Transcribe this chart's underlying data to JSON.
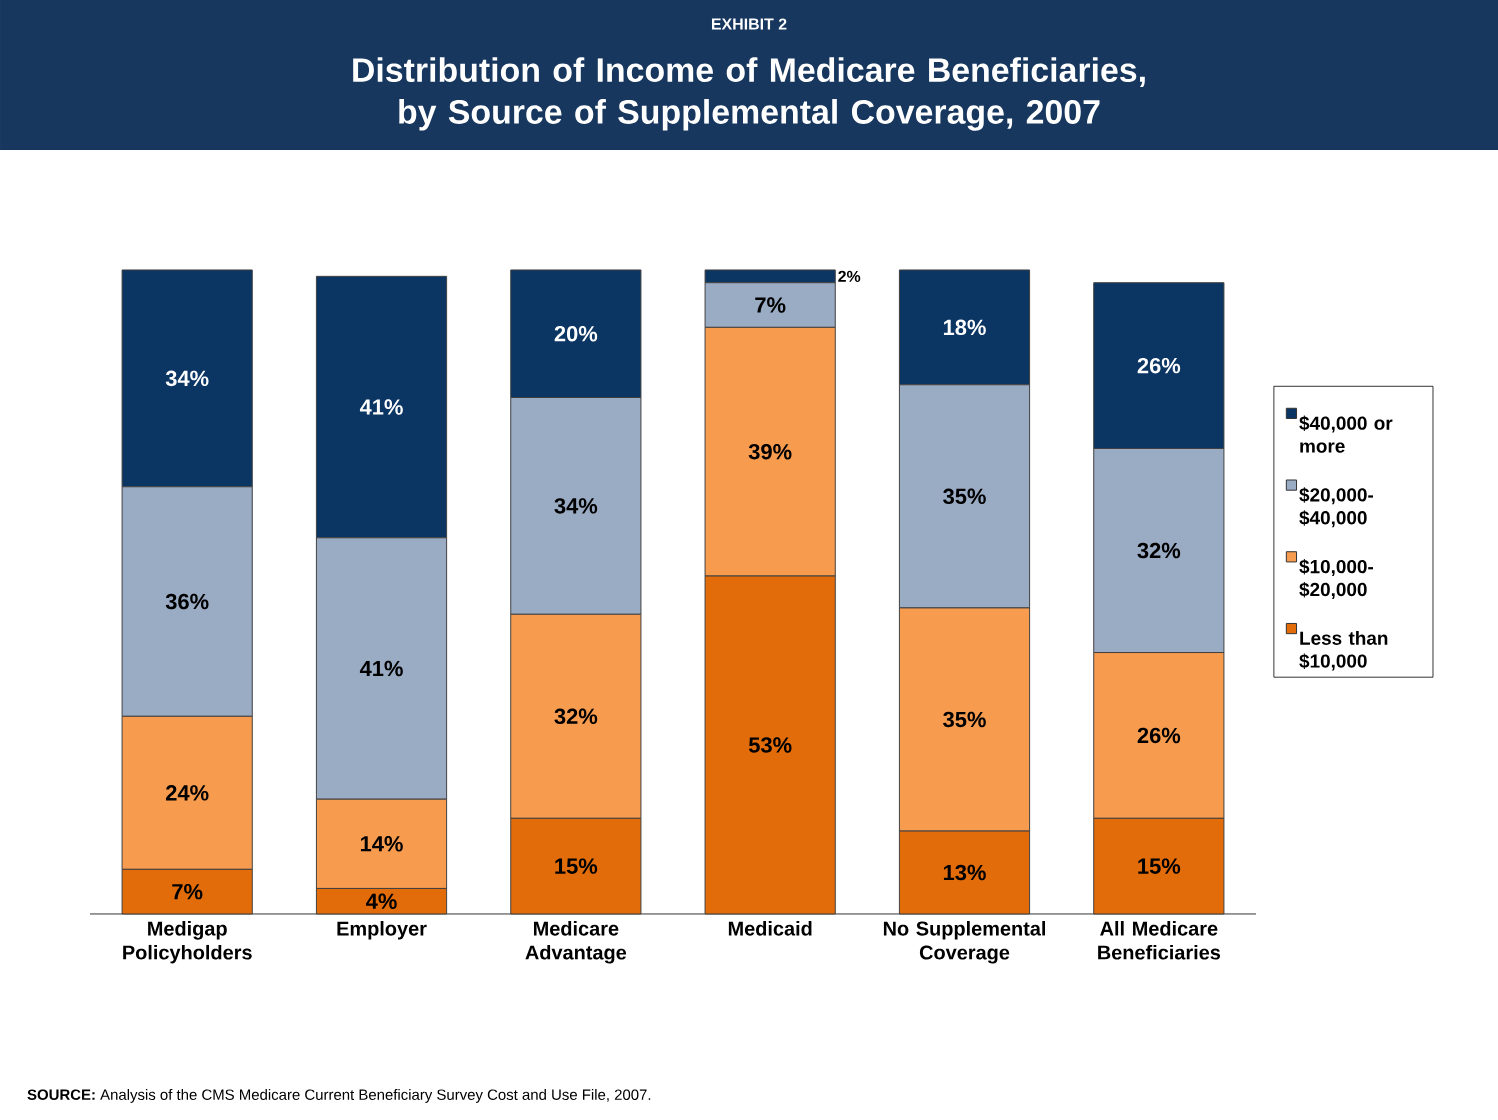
{
  "chart_data": {
    "type": "bar",
    "subtitle": "EXHIBIT 2",
    "title": "Distribution of Income of Medicare Beneficiaries, by Source of Supplemental Coverage, 2007",
    "categories": [
      "Medigap Policyholders",
      "Employer",
      "Medicare Advantage",
      "Medicaid",
      "No Supplemental Coverage",
      "All Medicare Beneficiaries"
    ],
    "stacked": true,
    "legend": "right",
    "series": [
      {
        "name": "Less than $10,000",
        "color": "#e36c0a",
        "values": [
          7,
          4,
          15,
          53,
          13,
          15
        ],
        "value_labels": [
          "7%",
          "4%",
          "15%",
          "53%",
          "13%",
          "15%"
        ]
      },
      {
        "name": "$10,000-$20,000",
        "color": "#f79b4e",
        "values": [
          24,
          14,
          32,
          39,
          35,
          26
        ],
        "value_labels": [
          "24%",
          "14%",
          "32%",
          "39%",
          "35%",
          "26%"
        ]
      },
      {
        "name": "$20,000-$40,000",
        "color": "#9aabc4",
        "values": [
          36,
          41,
          34,
          7,
          35,
          32
        ],
        "value_labels": [
          "36%",
          "41%",
          "34%",
          "7%",
          "35%",
          "32%"
        ]
      },
      {
        "name": "$40,000 or more",
        "color": "#0b3563",
        "values": [
          34,
          41,
          20,
          2,
          18,
          26
        ],
        "value_labels": [
          "34%",
          "41%",
          "20%",
          "2%",
          "18%",
          "26%"
        ]
      }
    ],
    "annotations": [
      "**SOURCE:** Analysis of the CMS Medicare Current Beneficiary Survey Cost and Use File, 2007."
    ]
  }
}
